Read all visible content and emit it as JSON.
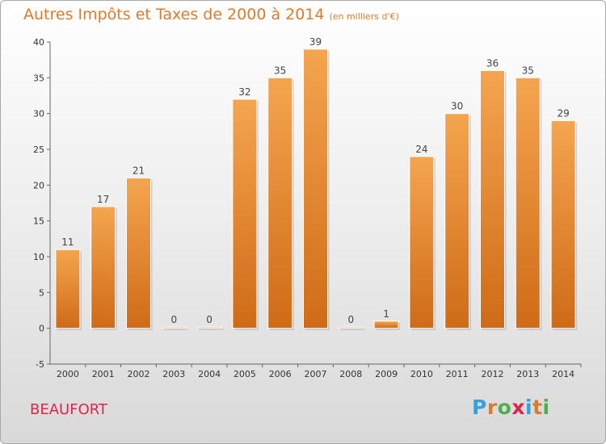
{
  "header": {
    "title": "Autres Impôts et Taxes de 2000 à 2014",
    "unit": "(en milliers d'€)"
  },
  "commune": "BEAUFORT",
  "logo": {
    "text": "Proxiti",
    "colors": [
      "#3aa0d8",
      "#e07a29",
      "#4caf50",
      "#e0234c",
      "#3aa0d8",
      "#e07a29",
      "#4caf50"
    ]
  },
  "chart_data": {
    "type": "bar",
    "categories": [
      "2000",
      "2001",
      "2002",
      "2003",
      "2004",
      "2005",
      "2006",
      "2007",
      "2008",
      "2009",
      "2010",
      "2011",
      "2012",
      "2013",
      "2014"
    ],
    "values": [
      11,
      17,
      21,
      0,
      0,
      32,
      35,
      39,
      0,
      1,
      24,
      30,
      36,
      35,
      29
    ],
    "title": "Autres Impôts et Taxes de 2000 à 2014",
    "ylim": [
      -5,
      40
    ],
    "yticks": [
      -5,
      0,
      5,
      10,
      15,
      20,
      25,
      30,
      35,
      40
    ],
    "grid": false,
    "bar_color": "#e8862f"
  }
}
